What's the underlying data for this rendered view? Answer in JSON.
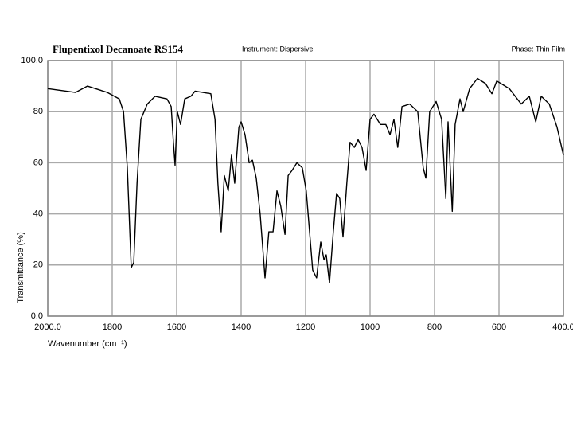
{
  "chart_data": {
    "type": "line",
    "title": "Flupentixol Decanoate RS154",
    "instrument": "Instrument:  Dispersive",
    "phase": "Phase:  Thin Film",
    "x_label": "Wavenumber (cm⁻¹)",
    "y_label": "Transmittance (%)",
    "xlim": [
      2000,
      400
    ],
    "ylim": [
      0,
      100
    ],
    "xticks": [
      {
        "value": 2000,
        "label": "2000.0"
      },
      1800,
      1600,
      1400,
      1200,
      1000,
      800,
      600,
      {
        "value": 400,
        "label": "400.0"
      }
    ],
    "yticks": [
      {
        "value": 0,
        "label": "0.0"
      },
      20,
      40,
      60,
      80,
      {
        "value": 100,
        "label": "100.0"
      }
    ],
    "grid": true,
    "x": [
      2000,
      1914,
      1877,
      1815,
      1778,
      1765,
      1753,
      1741,
      1733,
      1723,
      1711,
      1691,
      1667,
      1630,
      1617,
      1610,
      1605,
      1598,
      1588,
      1575,
      1556,
      1543,
      1494,
      1481,
      1472,
      1462,
      1452,
      1440,
      1430,
      1420,
      1407,
      1400,
      1388,
      1375,
      1365,
      1353,
      1341,
      1326,
      1314,
      1301,
      1289,
      1277,
      1264,
      1254,
      1242,
      1227,
      1210,
      1198,
      1178,
      1166,
      1153,
      1143,
      1136,
      1126,
      1114,
      1104,
      1094,
      1084,
      1072,
      1062,
      1049,
      1037,
      1025,
      1012,
      1000,
      988,
      968,
      951,
      938,
      926,
      914,
      901,
      877,
      852,
      835,
      827,
      815,
      795,
      778,
      765,
      758,
      745,
      736,
      721,
      711,
      691,
      667,
      642,
      622,
      607,
      568,
      531,
      506,
      486,
      469,
      444,
      420,
      400
    ],
    "series": [
      {
        "color": "#000000",
        "values": [
          89,
          87.5,
          90,
          87.5,
          85,
          80,
          58,
          19,
          21,
          52,
          77,
          83,
          86,
          85,
          82,
          68,
          59,
          80,
          75,
          85,
          86,
          88,
          87,
          77,
          52,
          33,
          55,
          49,
          63,
          52,
          74,
          76,
          71,
          60,
          61,
          54,
          40,
          15,
          33,
          33,
          49,
          43,
          32,
          55,
          57,
          60,
          58,
          49,
          18,
          15,
          29,
          22,
          24,
          13,
          33,
          48,
          46,
          31,
          52,
          68,
          66,
          69,
          66,
          57,
          77,
          79,
          75,
          75,
          71,
          77,
          66,
          82,
          83,
          80,
          58,
          54,
          80,
          84,
          77,
          46,
          76,
          41,
          75,
          85,
          80,
          89,
          93,
          91,
          87,
          92,
          89,
          83,
          86,
          76,
          86,
          83,
          74,
          63
        ]
      }
    ]
  }
}
